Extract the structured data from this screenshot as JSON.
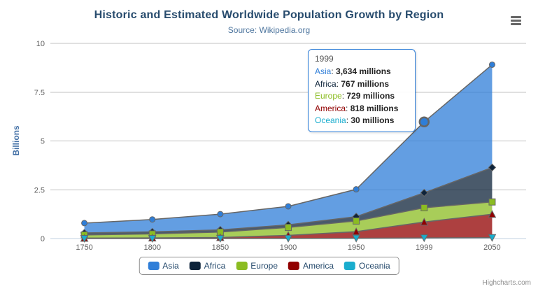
{
  "header": {
    "title": "Historic and Estimated Worldwide Population Growth by Region",
    "subtitle": "Source: Wikipedia.org"
  },
  "icons": {
    "export_menu": "hamburger-menu"
  },
  "credits": "Highcharts.com",
  "colors": {
    "title": "#274b6d",
    "subtitle": "#4d759e",
    "axis_labels": "#606060",
    "yaxis_title": "#4572A7",
    "grid_line": "#C0C0C0",
    "axis_line": "#C0D0E0",
    "series_outline": "#666666",
    "legend_border": "#909090",
    "legend_text": "#274b6d",
    "tooltip_border": "#2f7ed8"
  },
  "chart_data": {
    "type": "area",
    "stacked": true,
    "title": "Historic and Estimated Worldwide Population Growth by Region",
    "subtitle": "Source: Wikipedia.org",
    "categories": [
      "1750",
      "1800",
      "1850",
      "1900",
      "1950",
      "1999",
      "2050"
    ],
    "series": [
      {
        "name": "Asia",
        "color": "#2f7ed8",
        "marker": "circle",
        "values": [
          502,
          635,
          809,
          947,
          1402,
          3634,
          5268
        ]
      },
      {
        "name": "Africa",
        "color": "#0d233a",
        "marker": "diamond",
        "values": [
          106,
          107,
          111,
          133,
          221,
          767,
          1766
        ]
      },
      {
        "name": "Europe",
        "color": "#8bbc21",
        "marker": "square",
        "values": [
          163,
          203,
          276,
          408,
          547,
          729,
          628
        ]
      },
      {
        "name": "America",
        "color": "#910000",
        "marker": "triangle",
        "values": [
          18,
          31,
          54,
          156,
          339,
          818,
          1201
        ]
      },
      {
        "name": "Oceania",
        "color": "#1aadce",
        "marker": "triangle-down",
        "values": [
          2,
          2,
          2,
          6,
          13,
          30,
          46
        ]
      }
    ],
    "values_unit": "millions",
    "xlabel": "",
    "ylabel": "Billions",
    "yticks": [
      0,
      2.5,
      5,
      7.5,
      10
    ],
    "ytick_labels": [
      "0",
      "2.5",
      "5",
      "7.5",
      "10"
    ],
    "ylim": [
      0,
      10
    ],
    "grid": true,
    "legend_position": "bottom",
    "fill_opacity": 0.75
  },
  "tooltip": {
    "header": "1999",
    "rows": [
      {
        "name": "Asia",
        "value": "3,634 millions"
      },
      {
        "name": "Africa",
        "value": "767 millions"
      },
      {
        "name": "Europe",
        "value": "729 millions"
      },
      {
        "name": "America",
        "value": "818 millions"
      },
      {
        "name": "Oceania",
        "value": "30 millions"
      }
    ],
    "hover_point": {
      "category": "1999",
      "series": "Asia"
    }
  }
}
